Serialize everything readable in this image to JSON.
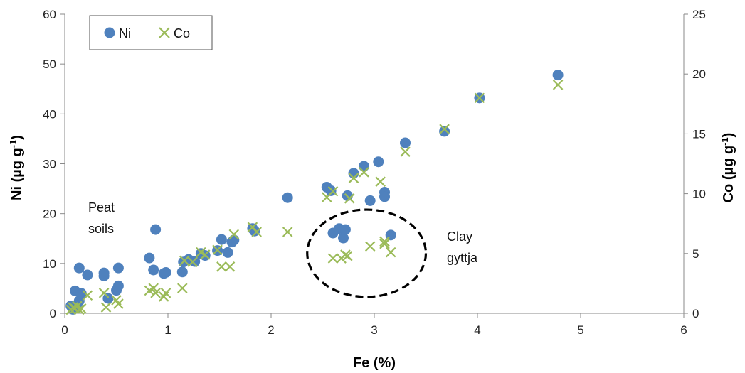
{
  "chart_data": {
    "type": "scatter",
    "xlabel": "Fe (%)",
    "ylabel_left": {
      "main": "Ni (µg g",
      "sup": "-1",
      "end": ")"
    },
    "ylabel_right": {
      "main": "Co (µg g",
      "sup": "-1",
      "end": ")"
    },
    "xlim": [
      0,
      6
    ],
    "ylim_left": [
      0,
      60
    ],
    "ylim_right": [
      0,
      25
    ],
    "xticks": [
      "0",
      "1",
      "2",
      "3",
      "4",
      "5",
      "6"
    ],
    "yticks_left": [
      "0",
      "10",
      "20",
      "30",
      "40",
      "50",
      "60"
    ],
    "yticks_right": [
      "0",
      "5",
      "10",
      "15",
      "20",
      "25"
    ],
    "grid": false,
    "legend_position": "top-left",
    "colors": {
      "ni": "#4f81bd",
      "co": "#9bbb59"
    },
    "series": [
      {
        "name": "Ni",
        "axis": "left",
        "marker": "circle",
        "points": [
          [
            0.06,
            1.5
          ],
          [
            0.08,
            0.8
          ],
          [
            0.1,
            4.5
          ],
          [
            0.12,
            1.2
          ],
          [
            0.14,
            2.5
          ],
          [
            0.14,
            9.1
          ],
          [
            0.16,
            4.0
          ],
          [
            0.22,
            7.7
          ],
          [
            0.38,
            7.5
          ],
          [
            0.38,
            8.1
          ],
          [
            0.42,
            3.0
          ],
          [
            0.5,
            4.6
          ],
          [
            0.52,
            5.5
          ],
          [
            0.52,
            9.1
          ],
          [
            0.82,
            11.1
          ],
          [
            0.86,
            8.7
          ],
          [
            0.88,
            16.8
          ],
          [
            0.96,
            8.0
          ],
          [
            0.98,
            8.2
          ],
          [
            1.14,
            8.3
          ],
          [
            1.15,
            10.3
          ],
          [
            1.2,
            10.8
          ],
          [
            1.26,
            10.4
          ],
          [
            1.32,
            12.0
          ],
          [
            1.36,
            11.6
          ],
          [
            1.48,
            12.6
          ],
          [
            1.52,
            14.8
          ],
          [
            1.58,
            12.2
          ],
          [
            1.62,
            14.3
          ],
          [
            1.64,
            14.7
          ],
          [
            1.82,
            17.0
          ],
          [
            1.84,
            16.5
          ],
          [
            2.16,
            23.2
          ],
          [
            2.54,
            25.3
          ],
          [
            2.58,
            24.6
          ],
          [
            2.6,
            16.1
          ],
          [
            2.66,
            17.0
          ],
          [
            2.7,
            15.1
          ],
          [
            2.72,
            16.8
          ],
          [
            2.74,
            23.6
          ],
          [
            2.8,
            28.1
          ],
          [
            2.9,
            29.5
          ],
          [
            2.96,
            22.6
          ],
          [
            3.04,
            30.4
          ],
          [
            3.1,
            24.3
          ],
          [
            3.1,
            23.4
          ],
          [
            3.16,
            15.7
          ],
          [
            3.3,
            34.2
          ],
          [
            3.68,
            36.5
          ],
          [
            4.02,
            43.2
          ],
          [
            4.78,
            47.8
          ]
        ]
      },
      {
        "name": "Co",
        "axis": "right",
        "marker": "x",
        "points": [
          [
            0.06,
            0.3
          ],
          [
            0.08,
            0.5
          ],
          [
            0.1,
            0.4
          ],
          [
            0.12,
            0.6
          ],
          [
            0.14,
            0.3
          ],
          [
            0.16,
            0.4
          ],
          [
            0.22,
            1.5
          ],
          [
            0.38,
            1.7
          ],
          [
            0.4,
            0.5
          ],
          [
            0.5,
            1.1
          ],
          [
            0.52,
            0.8
          ],
          [
            0.82,
            1.9
          ],
          [
            0.86,
            2.1
          ],
          [
            0.88,
            1.7
          ],
          [
            0.96,
            1.4
          ],
          [
            0.98,
            1.7
          ],
          [
            1.14,
            2.1
          ],
          [
            1.16,
            4.4
          ],
          [
            1.24,
            4.3
          ],
          [
            1.32,
            5.1
          ],
          [
            1.36,
            4.9
          ],
          [
            1.48,
            5.3
          ],
          [
            1.52,
            3.9
          ],
          [
            1.6,
            3.9
          ],
          [
            1.64,
            6.6
          ],
          [
            1.82,
            7.2
          ],
          [
            1.86,
            6.8
          ],
          [
            2.16,
            6.8
          ],
          [
            2.54,
            9.7
          ],
          [
            2.6,
            4.6
          ],
          [
            2.6,
            10.2
          ],
          [
            2.68,
            4.6
          ],
          [
            2.72,
            4.9
          ],
          [
            2.74,
            4.8
          ],
          [
            2.76,
            9.6
          ],
          [
            2.8,
            11.3
          ],
          [
            2.9,
            11.8
          ],
          [
            2.96,
            5.6
          ],
          [
            3.06,
            11.0
          ],
          [
            3.1,
            6.0
          ],
          [
            3.1,
            5.8
          ],
          [
            3.16,
            5.1
          ],
          [
            3.3,
            13.5
          ],
          [
            3.68,
            15.4
          ],
          [
            4.02,
            18.0
          ],
          [
            4.78,
            19.1
          ]
        ]
      }
    ],
    "legend": [
      {
        "label": "Ni",
        "marker": "circle"
      },
      {
        "label": "Co",
        "marker": "x"
      }
    ],
    "annotations": {
      "peat_line1": "Peat",
      "peat_line2": "soils",
      "clay_line1": "Clay",
      "clay_line2": "gyttja"
    },
    "highlight_ellipse": {
      "label": "clay-gyttja-cluster",
      "x_range": [
        2.35,
        3.5
      ],
      "y_range_left": [
        3.3,
        20.8
      ]
    }
  }
}
